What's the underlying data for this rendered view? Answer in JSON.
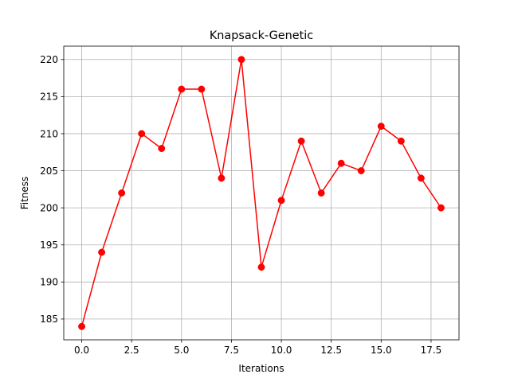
{
  "chart_data": {
    "type": "line",
    "title": "Knapsack-Genetic",
    "xlabel": "Iterations",
    "ylabel": "Fitness",
    "xlim": [
      -0.9,
      18.9
    ],
    "ylim": [
      182.2,
      221.8
    ],
    "xticks": [
      0.0,
      2.5,
      5.0,
      7.5,
      10.0,
      12.5,
      15.0,
      17.5
    ],
    "xtick_labels": [
      "0.0",
      "2.5",
      "5.0",
      "7.5",
      "10.0",
      "12.5",
      "15.0",
      "17.5"
    ],
    "yticks": [
      185,
      190,
      195,
      200,
      205,
      210,
      215,
      220
    ],
    "ytick_labels": [
      "185",
      "190",
      "195",
      "200",
      "205",
      "210",
      "215",
      "220"
    ],
    "grid": true,
    "series": [
      {
        "color": "#ff0000",
        "marker": "circle",
        "x": [
          0,
          1,
          2,
          3,
          4,
          5,
          6,
          7,
          8,
          9,
          10,
          11,
          12,
          13,
          14,
          15,
          16,
          17,
          18
        ],
        "y": [
          184,
          194,
          202,
          210,
          208,
          216,
          216,
          204,
          220,
          192,
          201,
          209,
          202,
          206,
          205,
          211,
          209,
          204,
          200
        ]
      }
    ]
  }
}
